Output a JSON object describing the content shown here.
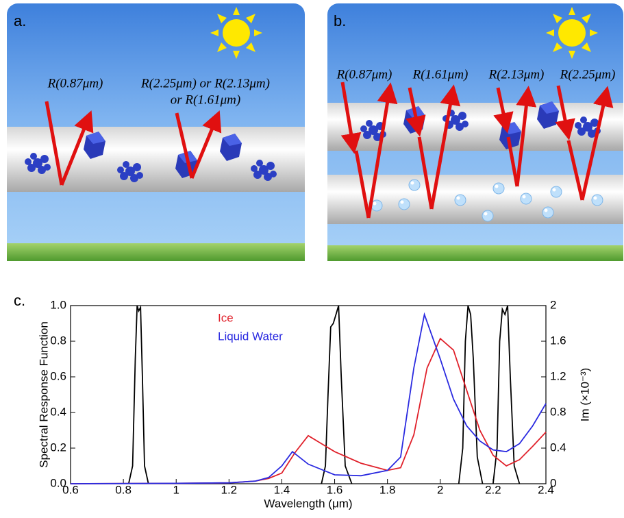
{
  "panel_a": {
    "label": "a.",
    "texts": [
      "R(0.87μm)",
      "R(2.25μm) or R(2.13μm)",
      "or R(1.61μm)"
    ]
  },
  "panel_b": {
    "label": "b.",
    "texts": [
      "R(0.87μm)",
      "R(1.61μm)",
      "R(2.13μm)",
      "R(2.25μm)"
    ]
  },
  "panel_c": {
    "label": "c."
  },
  "chart_data": {
    "type": "line",
    "xlabel": "Wavelength (μm)",
    "ylabel": "Spectral Response Function",
    "y2label": "Im (×10⁻³)",
    "xlim": [
      0.6,
      2.4
    ],
    "xticks": [
      0.6,
      0.8,
      1,
      1.2,
      1.4,
      1.6,
      1.8,
      2,
      2.2,
      2.4
    ],
    "ylim": [
      0,
      1
    ],
    "yticks": [
      {
        "value": 0,
        "label": "0.0"
      },
      0.2,
      0.4,
      0.6,
      0.8,
      {
        "value": 1,
        "label": "1.0"
      }
    ],
    "y2lim": [
      0,
      2
    ],
    "y2ticks": [
      0,
      0.4,
      0.8,
      1.2,
      1.6,
      2
    ],
    "series": [
      {
        "color": "#000000",
        "axis": "y",
        "x": [
          0.82,
          0.835,
          0.845,
          0.852,
          0.858,
          0.865,
          0.872,
          0.88,
          0.895,
          1.2,
          1.55,
          1.565,
          1.575,
          1.585,
          1.595,
          1.605,
          1.615,
          1.625,
          1.64,
          1.665,
          1.9,
          2.07,
          2.085,
          2.095,
          2.105,
          2.115,
          2.125,
          2.14,
          2.16,
          2.19,
          2.2,
          2.215,
          2.225,
          2.235,
          2.245,
          2.255,
          2.265,
          2.28,
          2.3
        ],
        "values": [
          0,
          0.1,
          0.7,
          1.0,
          0.97,
          0.99,
          0.6,
          0.1,
          0,
          null,
          0,
          0.1,
          0.5,
          0.88,
          0.9,
          0.95,
          1.0,
          0.6,
          0.1,
          0,
          null,
          0,
          0.2,
          0.8,
          1.0,
          0.95,
          0.7,
          0.15,
          0,
          null,
          0,
          0.2,
          0.8,
          0.98,
          0.95,
          1.0,
          0.6,
          0.1,
          0
        ]
      },
      {
        "name": "Ice",
        "color": "#e0202a",
        "axis": "y2",
        "x": [
          0.6,
          1.0,
          1.2,
          1.3,
          1.35,
          1.4,
          1.45,
          1.5,
          1.55,
          1.6,
          1.7,
          1.8,
          1.85,
          1.9,
          1.95,
          2.0,
          2.05,
          2.1,
          2.15,
          2.2,
          2.25,
          2.3,
          2.35,
          2.4
        ],
        "values": [
          0,
          0.005,
          0.01,
          0.03,
          0.06,
          0.12,
          0.35,
          0.54,
          0.45,
          0.36,
          0.23,
          0.15,
          0.18,
          0.55,
          1.3,
          1.63,
          1.5,
          1.05,
          0.6,
          0.32,
          0.2,
          0.27,
          0.42,
          0.58
        ]
      },
      {
        "name": "Liquid Water",
        "color": "#2a2ae0",
        "axis": "y2",
        "x": [
          0.6,
          1.0,
          1.2,
          1.3,
          1.35,
          1.4,
          1.44,
          1.5,
          1.6,
          1.7,
          1.8,
          1.85,
          1.9,
          1.94,
          2.0,
          2.05,
          2.1,
          2.15,
          2.2,
          2.25,
          2.3,
          2.35,
          2.4
        ],
        "values": [
          0,
          0.005,
          0.01,
          0.03,
          0.07,
          0.2,
          0.36,
          0.22,
          0.1,
          0.09,
          0.15,
          0.3,
          1.3,
          1.9,
          1.4,
          0.95,
          0.65,
          0.48,
          0.38,
          0.36,
          0.45,
          0.65,
          0.9
        ]
      }
    ]
  }
}
